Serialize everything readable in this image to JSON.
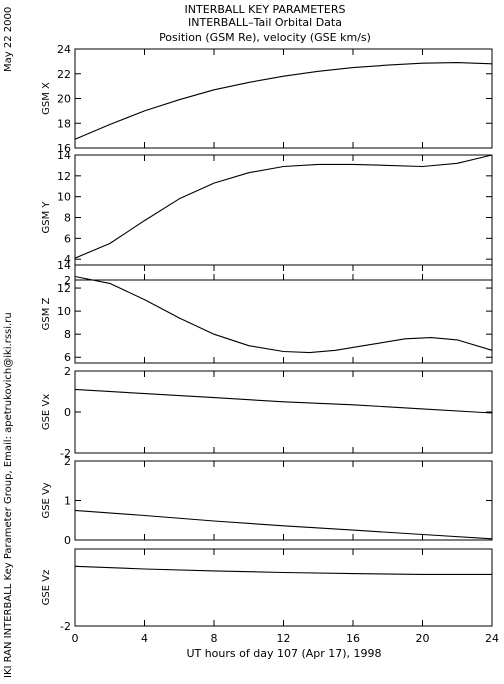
{
  "header": {
    "line1": "INTERBALL KEY PARAMETERS",
    "line2": "INTERBALL–Tail Orbital Data",
    "line3": "Position (GSM Re), velocity (GSE km/s)"
  },
  "side": {
    "date": "May 22 2000",
    "credit": "IKI RAN INTERBALL Key Parameter Group, Email: apetrukovich@iki.rssi.ru"
  },
  "chart_data": {
    "type": "line",
    "xlabel": "UT hours of day 107 (Apr 17), 1998",
    "xlim": [
      0,
      24
    ],
    "xticks": [
      0,
      4,
      8,
      12,
      16,
      20,
      24
    ],
    "panels": [
      {
        "ylabel": "GSM X",
        "ylim": [
          16,
          24
        ],
        "yticks": [
          16,
          18,
          20,
          22,
          24
        ],
        "x": [
          0,
          2,
          4,
          6,
          8,
          10,
          12,
          14,
          16,
          18,
          20,
          22,
          24
        ],
        "y": [
          16.7,
          17.9,
          19.0,
          19.9,
          20.7,
          21.3,
          21.8,
          22.2,
          22.5,
          22.7,
          22.85,
          22.9,
          22.8
        ]
      },
      {
        "ylabel": "GSM Y",
        "ylim": [
          2,
          14
        ],
        "yticks": [
          2,
          4,
          6,
          8,
          10,
          12,
          14
        ],
        "x": [
          0,
          2,
          4,
          6,
          8,
          10,
          12,
          14,
          16,
          18,
          20,
          22,
          24
        ],
        "y": [
          4.1,
          5.5,
          7.7,
          9.8,
          11.3,
          12.3,
          12.9,
          13.1,
          13.1,
          13.0,
          12.9,
          13.2,
          14.0
        ]
      },
      {
        "ylabel": "GSM Z",
        "ylim": [
          5.5,
          14
        ],
        "yticks": [
          6,
          8,
          10,
          12,
          14
        ],
        "x": [
          0,
          2,
          4,
          6,
          8,
          10,
          12,
          13.5,
          15,
          17,
          19,
          20.5,
          22,
          24
        ],
        "y": [
          13.0,
          12.4,
          11.0,
          9.4,
          8.0,
          7.0,
          6.5,
          6.4,
          6.6,
          7.1,
          7.6,
          7.7,
          7.5,
          6.6
        ]
      },
      {
        "ylabel": "GSE Vx",
        "ylim": [
          -2,
          2
        ],
        "yticks": [
          -2,
          0,
          2
        ],
        "x": [
          0,
          4,
          8,
          12,
          16,
          20,
          24
        ],
        "y": [
          1.1,
          0.9,
          0.7,
          0.5,
          0.35,
          0.15,
          -0.05
        ]
      },
      {
        "ylabel": "GSE Vy",
        "ylim": [
          0,
          2
        ],
        "yticks": [
          0,
          1,
          2
        ],
        "x": [
          0,
          4,
          8,
          12,
          16,
          20,
          24
        ],
        "y": [
          0.75,
          0.62,
          0.48,
          0.36,
          0.25,
          0.14,
          0.03
        ]
      },
      {
        "ylabel": "GSE Vz",
        "ylim": [
          -2,
          0
        ],
        "yticks": [
          -2
        ],
        "x": [
          0,
          4,
          8,
          12,
          16,
          20,
          24
        ],
        "y": [
          -0.45,
          -0.52,
          -0.57,
          -0.61,
          -0.64,
          -0.66,
          -0.66
        ]
      }
    ]
  }
}
